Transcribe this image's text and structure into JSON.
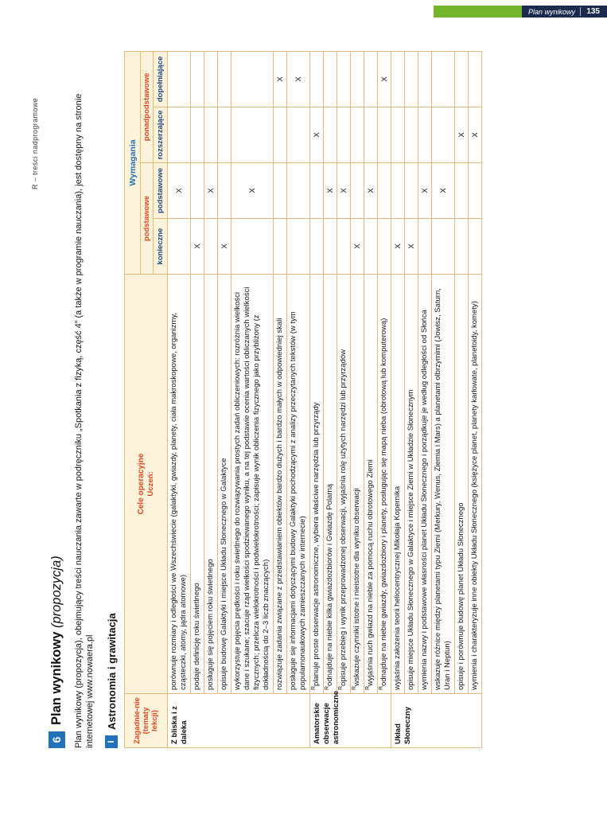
{
  "page_header": {
    "label": "Plan wynikowy",
    "page_number": "135"
  },
  "side_note": "R – treści nadprogramowe",
  "title": {
    "number": "6",
    "text": "Plan wynikowy",
    "suffix": "(propozycja)"
  },
  "intro": "Plan wynikowy (propozycja), obejmujący treści nauczania zawarte w podręczniku „Spotkania z fizyką, część 4” (a także w programie nauczania), jest dostępny na stronie internetowej www.nowaera.pl",
  "section": {
    "number": "I",
    "title": "Astronomia i grawitacja"
  },
  "table": {
    "headers": {
      "topic": "Zagadnie-nie (tematy lekcji)",
      "goals_line1": "Cele operacyjne",
      "goals_line2": "Uczeń:",
      "requirements": "Wymagania",
      "basic_group": "podstawowe",
      "above_basic_group": "ponadpodstawowe",
      "levels": {
        "konieczne": "konieczne",
        "podstawowe": "podstawowe",
        "rozszerzajace": "rozszerzające",
        "dopelniajace": "dopełniające"
      }
    },
    "level_order": [
      "konieczne",
      "podstawowe",
      "rozszerzajace",
      "dopelniajace"
    ],
    "x_symbol": "X",
    "r_marker": "R",
    "groups": [
      {
        "topic": "Z bliska i z daleka",
        "rows": [
          {
            "text": "porównuje rozmiary i odległości we Wszechświecie (galaktyki, gwiazdy, planety, ciała makroskopowe, organizmy, cząsteczki, atomy, jądra atomowe)",
            "r": false,
            "level": "podstawowe"
          },
          {
            "text": "podaje definicję roku świetlnego",
            "r": false,
            "level": "konieczne"
          },
          {
            "text": "posługuje się pojęciem roku świetlnego",
            "r": false,
            "level": "podstawowe"
          },
          {
            "text": "opisuje budowę Galaktyki i miejsce Układu Słonecznego w Galaktyce",
            "r": false,
            "level": "konieczne"
          },
          {
            "text": "wykorzystuje pojęcia prędkości i roku świetlnego do rozwiązywania prostych zadań obliczeniowych: rozróżnia wielkości dane i szukane; szacuje rząd wielkości spodziewanego wyniku, a na tej podstawie ocenia wartości obliczanych wielkości fizycznych; przelicza wielokrotności i podwielokrotności; zapisuje wynik obliczenia fizycznego jako przybliżony (z dokładnością do 2–3 liczb znaczących)",
            "r": false,
            "level": "podstawowe"
          },
          {
            "text": "rozwiązuje zadania związane z przedstawianiem obiektów bardzo dużych i bardzo małych w odpowiedniej skali",
            "r": false,
            "level": "dopelniajace"
          },
          {
            "text": "posługuje się informacjami dotyczącymi budowy Galaktyki pochodzącymi z analizy przeczytanych tekstów (w tym popularnonaukowych zamieszczanych w internecie)",
            "r": false,
            "level": "dopelniajace"
          }
        ]
      },
      {
        "topic": "Amatorskie obserwacje astronomiczne",
        "rows": [
          {
            "text": "planuje proste obserwacje astronomiczne, wybiera właściwe narzędzia lub przyrządy",
            "r": true,
            "level": "rozszerzajace"
          },
          {
            "text": "odnajduje na niebie kilka gwiazdozbiorów i Gwiazdę Polarną",
            "r": true,
            "level": "podstawowe"
          },
          {
            "text": "opisuje przebieg i wynik przeprowadzonej obserwacji, wyjaśnia rolę użytych narzędzi lub przyrządów",
            "r": true,
            "level": "podstawowe"
          },
          {
            "text": "wskazuje czynniki istotne i nieistotne dla wyniku obserwacji",
            "r": true,
            "level": "konieczne"
          },
          {
            "text": "wyjaśnia ruch gwiazd na niebie za pomocą ruchu obrotowego Ziemi",
            "r": true,
            "level": "podstawowe"
          },
          {
            "text": "odnajduje na niebie gwiazdy, gwiazdozbiory i planety, posługując się mapą nieba (obrotową lub komputerową)",
            "r": true,
            "level": "dopelniajace"
          }
        ]
      },
      {
        "topic": "Układ Słoneczny",
        "rows": [
          {
            "text": "wyjaśnia założenia teorii heliocentrycznej Mikołaja Kopernika",
            "r": false,
            "level": "konieczne"
          },
          {
            "text": "opisuje miejsce Układu Słonecznego w Galaktyce i miejsce Ziemi w Układzie Słonecznym",
            "r": false,
            "level": "konieczne"
          },
          {
            "text": "wymienia nazwy i podstawowe własności planet Układu Słonecznego i porządkuje je według odległości od Słońca",
            "r": false,
            "level": "podstawowe"
          },
          {
            "text": "wskazuje różnice między planetami typu Ziemi (Merkury, Wenus, Ziemia i Mars) a planetami olbrzymimi (Jowisz, Saturn, Uran i Neptun)",
            "r": false,
            "level": "podstawowe"
          },
          {
            "text": "opisuje i porównuje budowę planet Układu Słonecznego",
            "r": false,
            "level": "rozszerzajace"
          },
          {
            "text": "wymienia i charakteryzuje inne obiekty Układu Słonecznego (księżyce planet, planety karłowate, planetoidy, komety)",
            "r": false,
            "level": "rozszerzajace"
          }
        ]
      }
    ]
  }
}
